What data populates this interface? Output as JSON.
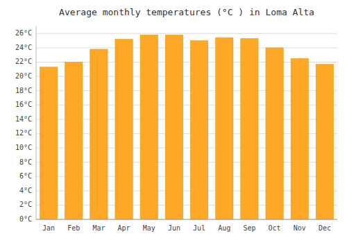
{
  "chart_data": {
    "type": "bar",
    "title": "Average monthly temperatures (°C ) in Loma Alta",
    "categories": [
      "Jan",
      "Feb",
      "Mar",
      "Apr",
      "May",
      "Jun",
      "Jul",
      "Aug",
      "Sep",
      "Oct",
      "Nov",
      "Dec"
    ],
    "values": [
      21.3,
      22.0,
      23.8,
      25.2,
      25.8,
      25.8,
      25.0,
      25.4,
      25.3,
      24.0,
      22.5,
      21.7
    ],
    "color": "#FFA726",
    "ylim": [
      0,
      27
    ],
    "yticks": [
      {
        "value": 0,
        "label": "0°C"
      },
      {
        "value": 2,
        "label": "2°C"
      },
      {
        "value": 4,
        "label": "4°C"
      },
      {
        "value": 6,
        "label": "6°C"
      },
      {
        "value": 8,
        "label": "8°C"
      },
      {
        "value": 10,
        "label": "10°C"
      },
      {
        "value": 12,
        "label": "12°C"
      },
      {
        "value": 14,
        "label": "14°C"
      },
      {
        "value": 16,
        "label": "16°C"
      },
      {
        "value": 18,
        "label": "18°C"
      },
      {
        "value": 20,
        "label": "20°C"
      },
      {
        "value": 22,
        "label": "22°C"
      },
      {
        "value": 24,
        "label": "24°C"
      },
      {
        "value": 26,
        "label": "26°C"
      }
    ],
    "grid": true
  }
}
